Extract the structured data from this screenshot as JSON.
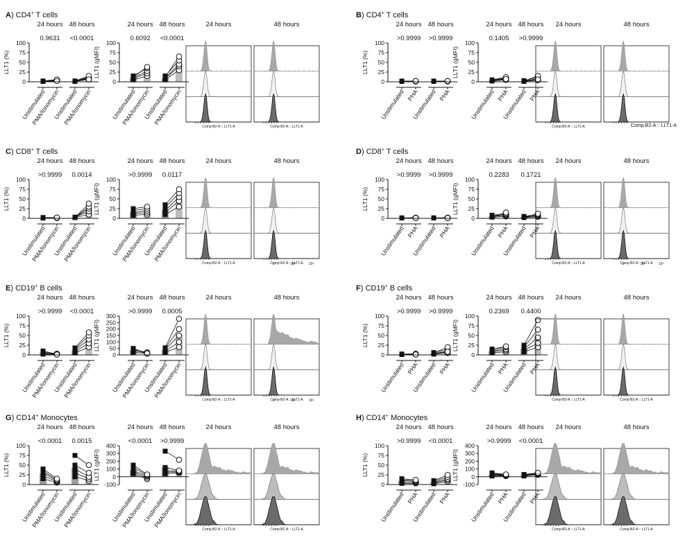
{
  "labels": {
    "y_pct": "LLT1 (%)",
    "y_gmfi": "LLT1 (gMFI)",
    "t24": "24 hours",
    "t48": "48 hours",
    "x_unstim": "Unstimulated",
    "x_pma": "PMA/Ionomycin",
    "x_pha": "PHA",
    "hist_axis": "Comp-B2-A :: LLT1-A",
    "hist_axis_large": "Comp-B2-A :: LLT1-A"
  },
  "colors": {
    "filled_marker": "#111111",
    "open_marker": "#ffffff",
    "bar": "#bdbdbd",
    "stim_hist": "#a8a8a8",
    "unstim_hist": "#6b6b6b",
    "dashed": "#999999"
  },
  "chart_data": [
    {
      "type": "scatter",
      "panel": "A",
      "population": "CD4+ T cells",
      "stimulus": "PMA/Ionomycin",
      "pct": {
        "ylim": [
          0,
          100
        ],
        "yticks": [
          0,
          25,
          50,
          75,
          100
        ],
        "p24": "0.9631",
        "p48": "<0.0001",
        "unstim24": [
          1,
          2,
          1,
          2,
          1
        ],
        "stim24": [
          3,
          5,
          4,
          6,
          2
        ],
        "unstim48": [
          1,
          2,
          1,
          2,
          1
        ],
        "stim48": [
          8,
          12,
          10,
          15,
          6
        ]
      },
      "gmfi": {
        "ylim": [
          0,
          100
        ],
        "yticks": [
          0,
          25,
          50,
          75,
          100
        ],
        "p24": "0.6092",
        "p48": "<0.0001",
        "unstim24": [
          5,
          8,
          10,
          15,
          12
        ],
        "stim24": [
          15,
          22,
          28,
          35,
          38
        ],
        "unstim48": [
          5,
          8,
          10,
          15,
          12
        ],
        "stim48": [
          30,
          40,
          45,
          55,
          65
        ]
      },
      "hist": {
        "kind": "narrow",
        "stim48_broad": false
      }
    },
    {
      "type": "scatter",
      "panel": "B",
      "population": "CD4+ T cells",
      "stimulus": "PHA",
      "pct": {
        "ylim": [
          0,
          100
        ],
        "yticks": [
          0,
          25,
          50,
          75,
          100
        ],
        "p24": ">0.9999",
        "p48": ">0.9999",
        "unstim24": [
          1,
          1,
          2,
          1,
          1
        ],
        "stim24": [
          1,
          2,
          2,
          1,
          2
        ],
        "unstim48": [
          1,
          1,
          2,
          1,
          1
        ],
        "stim48": [
          1,
          2,
          2,
          1,
          2
        ]
      },
      "gmfi": {
        "ylim": [
          0,
          100
        ],
        "yticks": [
          0,
          25,
          50,
          75,
          100
        ],
        "p24": "0.1405",
        "p48": ">0.9999",
        "unstim24": [
          2,
          3,
          4,
          5,
          3
        ],
        "stim24": [
          5,
          8,
          10,
          12,
          7
        ],
        "unstim48": [
          1,
          2,
          3,
          2,
          1
        ],
        "stim48": [
          4,
          8,
          12,
          15,
          6
        ]
      },
      "hist": {
        "kind": "narrow",
        "stim48_broad": false
      }
    },
    {
      "type": "scatter",
      "panel": "C",
      "population": "CD8+ T cells",
      "stimulus": "PMA/Ionomycin",
      "pct": {
        "ylim": [
          0,
          100
        ],
        "yticks": [
          0,
          25,
          50,
          75,
          100
        ],
        "p24": ">0.9999",
        "p48": "0.0014",
        "unstim24": [
          1,
          2,
          1,
          2,
          1
        ],
        "stim24": [
          1,
          2,
          2,
          1,
          2
        ],
        "unstim48": [
          2,
          3,
          2,
          3,
          2
        ],
        "stim48": [
          10,
          18,
          25,
          30,
          38
        ]
      },
      "gmfi": {
        "ylim": [
          0,
          100
        ],
        "yticks": [
          0,
          25,
          50,
          75,
          100
        ],
        "p24": ">0.9999",
        "p48": "0.0117",
        "unstim24": [
          8,
          12,
          15,
          20,
          25
        ],
        "stim24": [
          10,
          15,
          20,
          25,
          30
        ],
        "unstim48": [
          10,
          15,
          20,
          28,
          35
        ],
        "stim48": [
          30,
          45,
          55,
          65,
          75
        ]
      },
      "hist": {
        "kind": "narrow",
        "stim48_broad": false
      }
    },
    {
      "type": "scatter",
      "panel": "D",
      "population": "CD8+ T cells",
      "stimulus": "PHA",
      "pct": {
        "ylim": [
          0,
          100
        ],
        "yticks": [
          0,
          25,
          50,
          75,
          100
        ],
        "p24": ">0.9999",
        "p48": ">0.9999",
        "unstim24": [
          1,
          1,
          1,
          1,
          1
        ],
        "stim24": [
          1,
          1,
          2,
          1,
          1
        ],
        "unstim48": [
          1,
          1,
          1,
          1,
          1
        ],
        "stim48": [
          1,
          1,
          2,
          1,
          1
        ]
      },
      "gmfi": {
        "ylim": [
          0,
          100
        ],
        "yticks": [
          0,
          25,
          50,
          75,
          100
        ],
        "p24": "0.2283",
        "p48": "0.1721",
        "unstim24": [
          3,
          5,
          6,
          8,
          4
        ],
        "stim24": [
          5,
          8,
          10,
          12,
          15
        ],
        "unstim48": [
          2,
          3,
          4,
          5,
          3
        ],
        "stim48": [
          4,
          6,
          8,
          10,
          12
        ]
      },
      "hist": {
        "kind": "narrow",
        "stim48_broad": false
      }
    },
    {
      "type": "scatter",
      "panel": "E",
      "population": "CD19+ B cells",
      "stimulus": "PMA/Ionomycin",
      "pct": {
        "ylim": [
          0,
          100
        ],
        "yticks": [
          0,
          25,
          50,
          75,
          100
        ],
        "p24": ">0.9999",
        "p48": "<0.0001",
        "unstim24": [
          2,
          5,
          8,
          10,
          4
        ],
        "stim24": [
          1,
          2,
          3,
          2,
          1
        ],
        "unstim48": [
          5,
          8,
          12,
          15,
          18
        ],
        "stim48": [
          20,
          30,
          40,
          50,
          58
        ]
      },
      "gmfi": {
        "ylim": [
          0,
          300
        ],
        "yticks": [
          0,
          50,
          100,
          150,
          200,
          250,
          300
        ],
        "p24": ">0.9999",
        "p48": "0.0005",
        "unstim24": [
          20,
          30,
          40,
          45,
          50
        ],
        "stim24": [
          10,
          15,
          20,
          18,
          12
        ],
        "unstim48": [
          20,
          30,
          40,
          50,
          55
        ],
        "stim48": [
          60,
          100,
          150,
          200,
          280
        ]
      },
      "hist": {
        "kind": "narrow",
        "stim48_broad": true
      }
    },
    {
      "type": "scatter",
      "panel": "F",
      "population": "CD19+ B cells",
      "stimulus": "PHA",
      "pct": {
        "ylim": [
          0,
          100
        ],
        "yticks": [
          0,
          25,
          50,
          75,
          100
        ],
        "p24": ">0.9999",
        "p48": ">0.9999",
        "unstim24": [
          1,
          2,
          2,
          1,
          2
        ],
        "stim24": [
          1,
          2,
          3,
          2,
          1
        ],
        "unstim48": [
          2,
          4,
          6,
          5,
          3
        ],
        "stim48": [
          5,
          10,
          15,
          20,
          8
        ]
      },
      "gmfi": {
        "ylim": [
          0,
          100
        ],
        "yticks": [
          0,
          25,
          50,
          75,
          100
        ],
        "p24": "0.2369",
        "p48": "0.4400",
        "unstim24": [
          5,
          8,
          10,
          12,
          15
        ],
        "stim24": [
          8,
          12,
          15,
          20,
          22
        ],
        "unstim48": [
          8,
          12,
          15,
          20,
          25
        ],
        "stim48": [
          20,
          30,
          45,
          65,
          90
        ]
      },
      "hist": {
        "kind": "narrow",
        "stim48_broad": false
      }
    },
    {
      "type": "scatter",
      "panel": "G",
      "population": "CD14+ Monocytes",
      "stimulus": "PMA/Ionomycin",
      "pct": {
        "ylim": [
          0,
          100
        ],
        "yticks": [
          0,
          25,
          50,
          75,
          100
        ],
        "p24": "<0.0001",
        "p48": "0.0015",
        "unstim24": [
          15,
          22,
          30,
          35,
          40
        ],
        "stim24": [
          5,
          8,
          10,
          12,
          15
        ],
        "unstim48": [
          20,
          30,
          40,
          50,
          75
        ],
        "stim48": [
          10,
          15,
          20,
          30,
          50
        ]
      },
      "gmfi": {
        "ylim": [
          -100,
          400
        ],
        "yticks": [
          -100,
          0,
          100,
          200,
          300,
          400
        ],
        "p24": "<0.0001",
        "p48": ">0.9999",
        "unstim24": [
          40,
          60,
          80,
          120,
          150
        ],
        "stim24": [
          -30,
          -10,
          10,
          20,
          30
        ],
        "unstim48": [
          40,
          60,
          80,
          120,
          330
        ],
        "stim48": [
          50,
          60,
          70,
          80,
          220
        ]
      },
      "hist": {
        "kind": "broad",
        "stim48_broad": false
      }
    },
    {
      "type": "scatter",
      "panel": "H",
      "population": "CD14+ Monocytes",
      "stimulus": "PHA",
      "pct": {
        "ylim": [
          0,
          100
        ],
        "yticks": [
          0,
          25,
          50,
          75,
          100
        ],
        "p24": ">0.9999",
        "p48": "<0.0001",
        "unstim24": [
          3,
          6,
          10,
          12,
          15
        ],
        "stim24": [
          3,
          5,
          8,
          10,
          12
        ],
        "unstim48": [
          2,
          4,
          6,
          8,
          10
        ],
        "stim48": [
          8,
          12,
          15,
          20,
          25
        ]
      },
      "gmfi": {
        "ylim": [
          -100,
          400
        ],
        "yticks": [
          -100,
          0,
          100,
          200,
          300,
          400
        ],
        "p24": ">0.9999",
        "p48": "<0.0001",
        "unstim24": [
          10,
          20,
          30,
          40,
          50
        ],
        "stim24": [
          10,
          15,
          20,
          25,
          30
        ],
        "unstim48": [
          10,
          15,
          20,
          25,
          30
        ],
        "stim48": [
          25,
          35,
          40,
          45,
          50
        ]
      },
      "hist": {
        "kind": "broad",
        "stim48_broad": false
      }
    }
  ]
}
